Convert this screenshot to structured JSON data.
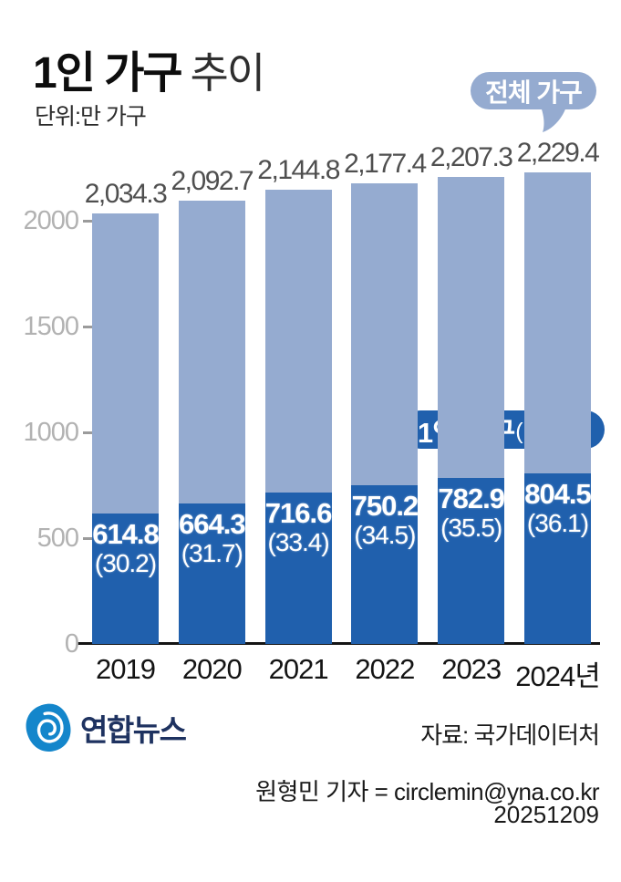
{
  "header": {
    "title_main": "1인 가구",
    "title_sub": "추이",
    "unit_label": "단위:만 가구"
  },
  "callouts": {
    "total_label": "전체 가구",
    "single_label_bold": "1인 가구",
    "single_label_paren": "(비중%)"
  },
  "chart_data": {
    "type": "bar",
    "stacked": true,
    "title": "1인 가구 추이",
    "unit": "만 가구",
    "categories": [
      "2019",
      "2020",
      "2021",
      "2022",
      "2023",
      "2024년"
    ],
    "series": [
      {
        "name": "전체 가구",
        "values": [
          2034.3,
          2092.7,
          2144.8,
          2177.4,
          2207.3,
          2229.4
        ],
        "color": "#95ABD0"
      },
      {
        "name": "1인 가구",
        "values": [
          614.8,
          664.3,
          716.6,
          750.2,
          782.9,
          804.5
        ],
        "color": "#2060AD"
      }
    ],
    "share_pct": [
      30.2,
      31.7,
      33.4,
      34.5,
      35.5,
      36.1
    ],
    "y_ticks": [
      0,
      500,
      1000,
      1500,
      2000
    ],
    "ylim": [
      0,
      2300
    ],
    "grid": false,
    "legend_position": "callout-bubbles"
  },
  "footer": {
    "logo_text": "연합뉴스",
    "source": "자료: 국가데이터처",
    "reporter": "원형민 기자 = circlemin@yna.co.kr",
    "date": "20251209"
  },
  "colors": {
    "total_bar": "#95ABD0",
    "single_bar": "#2060AD",
    "axis": "#141414",
    "tick_text": "#B2B2B2",
    "value_text": "#4F4F4F",
    "logo_icon": "#1486CB",
    "logo_text": "#1E3260"
  }
}
